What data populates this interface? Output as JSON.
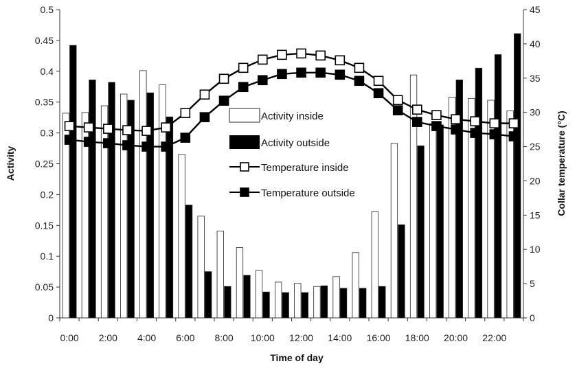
{
  "chart_data": {
    "type": "bar",
    "xlabel": "Time of day",
    "ylabel": "Activity",
    "y2label": "Collar temperature (°C)",
    "ylim": [
      0,
      0.5
    ],
    "y2lim": [
      0,
      45
    ],
    "grid": false,
    "legend_position": "center",
    "x_tick_labels": [
      "0:00",
      "2:00",
      "4:00",
      "6:00",
      "8:00",
      "10:00",
      "12:00",
      "14:00",
      "16:00",
      "18:00",
      "20:00",
      "22:00"
    ],
    "y_tick_labels": [
      "0",
      "0.05",
      "0.1",
      "0.15",
      "0.2",
      "0.25",
      "0.3",
      "0.35",
      "0.4",
      "0.45",
      "0.5"
    ],
    "y2_tick_labels": [
      "0",
      "5",
      "10",
      "15",
      "20",
      "25",
      "30",
      "35",
      "40",
      "45"
    ],
    "hours": [
      0,
      1,
      2,
      3,
      4,
      5,
      6,
      7,
      8,
      9,
      10,
      11,
      12,
      13,
      14,
      15,
      16,
      17,
      18,
      19,
      20,
      21,
      22,
      23
    ],
    "series": [
      {
        "name": "Activity inside",
        "kind": "bar",
        "axis": "left",
        "fill": "#ffffff",
        "values": [
          0.332,
          0.333,
          0.344,
          0.363,
          0.401,
          0.378,
          0.265,
          0.165,
          0.141,
          0.114,
          0.077,
          0.058,
          0.056,
          0.051,
          0.067,
          0.106,
          0.172,
          0.283,
          0.394,
          0.315,
          0.358,
          0.356,
          0.353,
          0.336
        ]
      },
      {
        "name": "Activity outside",
        "kind": "bar",
        "axis": "left",
        "fill": "#000000",
        "values": [
          0.442,
          0.386,
          0.382,
          0.353,
          0.365,
          0.326,
          0.183,
          0.075,
          0.051,
          0.069,
          0.042,
          0.041,
          0.041,
          0.052,
          0.048,
          0.048,
          0.051,
          0.151,
          0.279,
          0.313,
          0.386,
          0.405,
          0.427,
          0.461
        ]
      },
      {
        "name": "Temperature inside",
        "kind": "line",
        "axis": "right",
        "fill": "#ffffff",
        "values": [
          28.0,
          27.8,
          27.6,
          27.4,
          27.3,
          27.8,
          29.9,
          32.6,
          34.9,
          36.5,
          37.7,
          38.4,
          38.6,
          38.3,
          37.6,
          36.5,
          34.6,
          31.8,
          30.4,
          29.6,
          29.0,
          28.7,
          28.4,
          28.4
        ]
      },
      {
        "name": "Temperature outside",
        "kind": "line",
        "axis": "right",
        "fill": "#000000",
        "values": [
          26.0,
          25.7,
          25.5,
          25.2,
          25.0,
          25.0,
          26.3,
          29.3,
          31.7,
          33.7,
          34.7,
          35.6,
          35.8,
          35.8,
          35.5,
          34.6,
          32.8,
          30.3,
          28.6,
          28.0,
          27.5,
          27.0,
          26.8,
          26.5
        ]
      }
    ]
  }
}
